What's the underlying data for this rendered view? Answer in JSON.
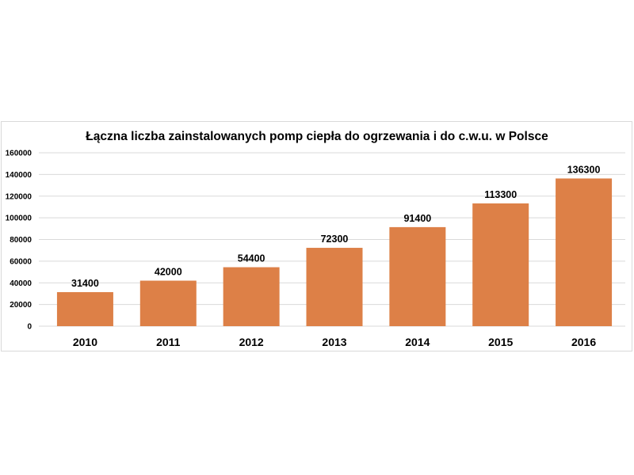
{
  "chart_data": {
    "type": "bar",
    "title": "Łączna liczba zainstalowanych pomp ciepła do ogrzewania i do c.w.u. w Polsce",
    "categories": [
      "2010",
      "2011",
      "2012",
      "2013",
      "2014",
      "2015",
      "2016"
    ],
    "values": [
      31400,
      42000,
      54400,
      72300,
      91400,
      113300,
      136300
    ],
    "data_labels": [
      "31400",
      "42000",
      "54400",
      "72300",
      "91400",
      "113300",
      "136300"
    ],
    "ylim": [
      0,
      160000
    ],
    "yticks": [
      "0",
      "20000",
      "40000",
      "60000",
      "80000",
      "100000",
      "120000",
      "140000",
      "160000"
    ],
    "ytick_values": [
      0,
      20000,
      40000,
      60000,
      80000,
      100000,
      120000,
      140000,
      160000
    ],
    "grid": true,
    "legend": "none",
    "bar_color": "#dd8047",
    "xlabel": "",
    "ylabel": ""
  }
}
